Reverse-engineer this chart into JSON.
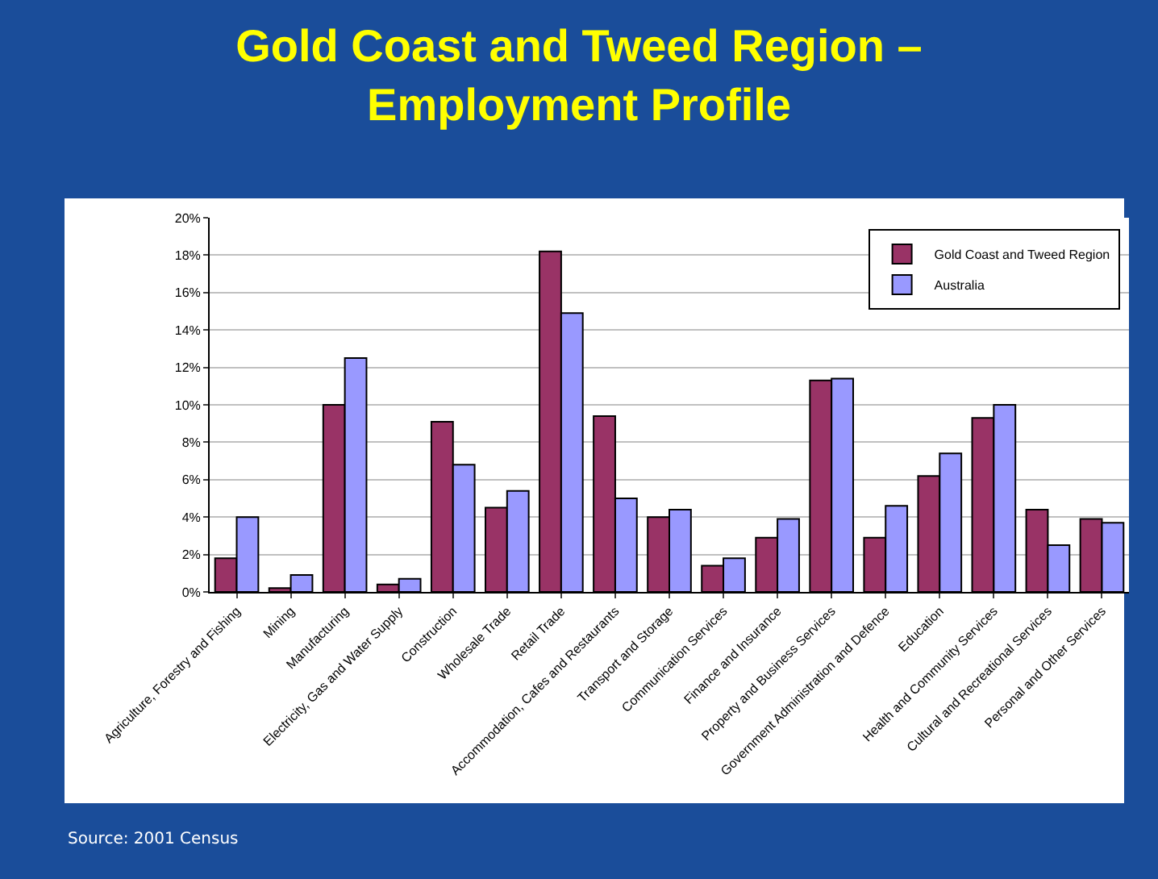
{
  "chart_data": {
    "type": "bar",
    "title": "Gold Coast and Tweed Region –\nEmployment Profile",
    "categories": [
      "Agriculture, Forestry and Fishing",
      "Mining",
      "Manufacturing",
      "Electricity, Gas and Water Supply",
      "Construction",
      "Wholesale Trade",
      "Retail Trade",
      "Accommodation, Cafes and Restaurants",
      "Transport and Storage",
      "Communication Services",
      "Finance and Insurance",
      "Property and Business Services",
      "Government Administration and Defence",
      "Education",
      "Health and Community Services",
      "Cultural and Recreational Services",
      "Personal and Other Services"
    ],
    "series": [
      {
        "name": "Gold Coast and Tweed Region",
        "color": "#993366",
        "values": [
          1.8,
          0.2,
          10.0,
          0.4,
          9.1,
          4.5,
          18.2,
          9.4,
          4.0,
          1.4,
          2.9,
          11.3,
          2.9,
          6.2,
          9.3,
          4.4,
          3.9
        ]
      },
      {
        "name": "Australia",
        "color": "#9999ff",
        "values": [
          4.0,
          0.9,
          12.5,
          0.7,
          6.8,
          5.4,
          14.9,
          5.0,
          4.4,
          1.8,
          3.9,
          11.4,
          4.6,
          7.4,
          10.0,
          2.5,
          3.7
        ]
      }
    ],
    "ylim": [
      0,
      20
    ],
    "yticks": [
      {
        "value": 0,
        "label": "0%"
      },
      {
        "value": 2,
        "label": "2%"
      },
      {
        "value": 4,
        "label": "4%"
      },
      {
        "value": 6,
        "label": "6%"
      },
      {
        "value": 8,
        "label": "8%"
      },
      {
        "value": 10,
        "label": "10%"
      },
      {
        "value": 12,
        "label": "12%"
      },
      {
        "value": 14,
        "label": "14%"
      },
      {
        "value": 16,
        "label": "16%"
      },
      {
        "value": 18,
        "label": "18%"
      },
      {
        "value": 20,
        "label": "20%"
      }
    ],
    "grid": "y",
    "legend": "top right",
    "annotations": [
      "Source: 2001 Census"
    ]
  }
}
